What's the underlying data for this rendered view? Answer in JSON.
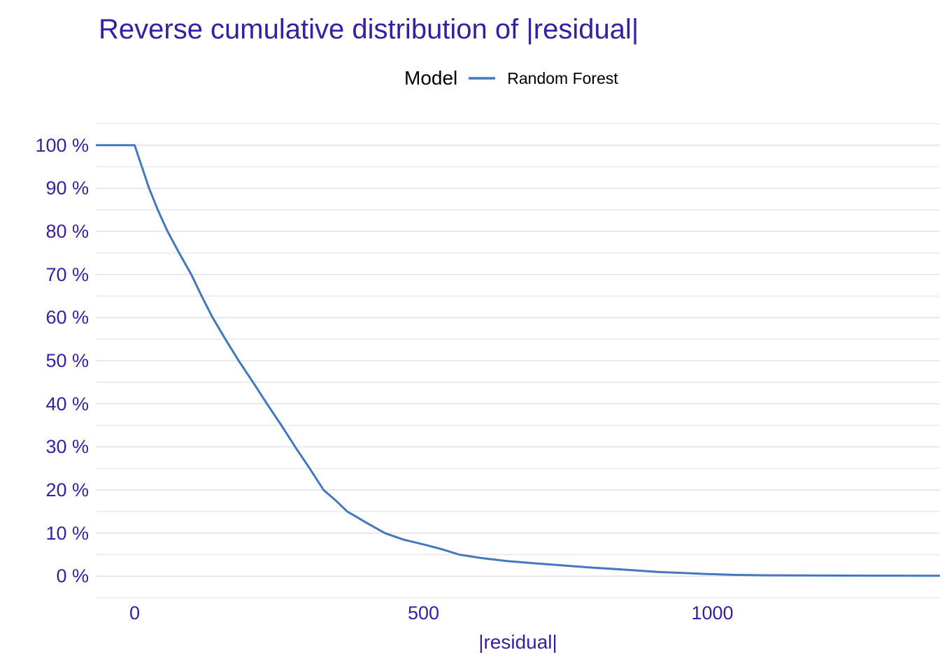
{
  "figure": {
    "title": "Reverse cumulative distribution of |residual|",
    "legend": {
      "title": "Model",
      "items": [
        {
          "label": "Random Forest",
          "color": "#4378bf"
        }
      ]
    },
    "x_axis_title": "|residual|"
  },
  "chart_data": {
    "type": "line",
    "title": "Reverse cumulative distribution of |residual|",
    "xlabel": "|residual|",
    "ylabel": "",
    "legend_title": "Model",
    "legend_position": "top-center",
    "grid": "horizontal-only",
    "xlim": [
      -67.2,
      1394
    ],
    "ylim": [
      -5.3,
      105.15
    ],
    "x_ticks": [
      0,
      500,
      1000
    ],
    "x_tick_labels": [
      "0",
      "500",
      "1000"
    ],
    "y_ticks": [
      0,
      10,
      20,
      30,
      40,
      50,
      60,
      70,
      80,
      90,
      100
    ],
    "y_tick_labels": [
      "0 %",
      "10 %",
      "20 %",
      "30 %",
      "40 %",
      "50 %",
      "60 %",
      "70 %",
      "80 %",
      "90 %",
      "100 %"
    ],
    "y_minor_ticks": [
      -5,
      5,
      15,
      25,
      35,
      45,
      55,
      65,
      75,
      85,
      95,
      105
    ],
    "y_unit": "percent",
    "series": [
      {
        "name": "Random Forest",
        "color": "#4378bf",
        "points": [
          [
            -67,
            100
          ],
          [
            0,
            100
          ],
          [
            12,
            95.2
          ],
          [
            25,
            90
          ],
          [
            40,
            85
          ],
          [
            57,
            80
          ],
          [
            77,
            75
          ],
          [
            98,
            70
          ],
          [
            116,
            65
          ],
          [
            135,
            60
          ],
          [
            157,
            55
          ],
          [
            180,
            50
          ],
          [
            205,
            45
          ],
          [
            229,
            40
          ],
          [
            254,
            35
          ],
          [
            278,
            30
          ],
          [
            303,
            25
          ],
          [
            327,
            20
          ],
          [
            347,
            17.7
          ],
          [
            368,
            15
          ],
          [
            400,
            12.5
          ],
          [
            433,
            10
          ],
          [
            465,
            8.5
          ],
          [
            505,
            7.2
          ],
          [
            533,
            6.2
          ],
          [
            562,
            5
          ],
          [
            600,
            4.2
          ],
          [
            645,
            3.5
          ],
          [
            690,
            3
          ],
          [
            740,
            2.5
          ],
          [
            790,
            2
          ],
          [
            850,
            1.5
          ],
          [
            905,
            1
          ],
          [
            950,
            0.75
          ],
          [
            990,
            0.5
          ],
          [
            1040,
            0.3
          ],
          [
            1100,
            0.2
          ],
          [
            1180,
            0.15
          ],
          [
            1280,
            0.12
          ],
          [
            1394,
            0.1
          ]
        ]
      }
    ],
    "colors": {
      "text_accent": "#371ea3",
      "curve": "#4378bf",
      "grid_major": "#e0e0e0",
      "grid_minor": "#e8e8e8",
      "legend_text": "#000000",
      "background": "#ffffff"
    }
  }
}
